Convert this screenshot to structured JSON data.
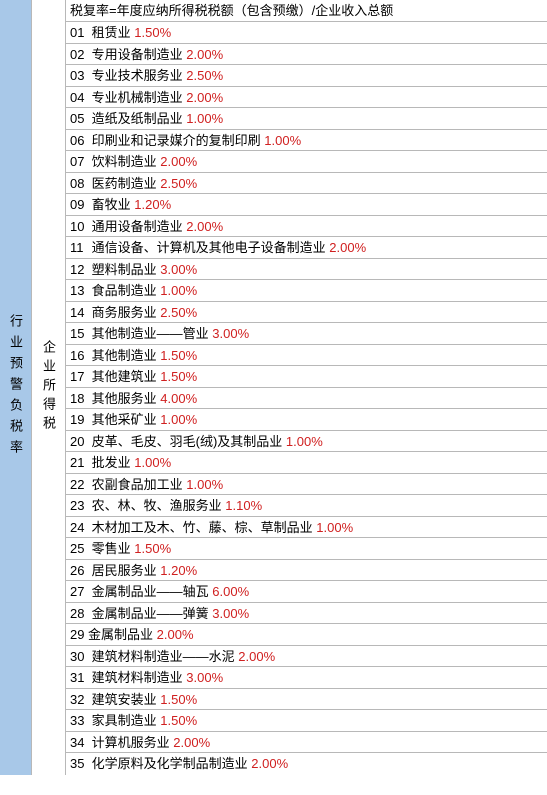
{
  "leftLabel": "行业预警负税率",
  "midLabel": "企业所得税",
  "headerFormula": "税复率=年度应纳所得税税额（包含预缴）/企业收入总额",
  "percentColor": "#d02020",
  "labelColor": "#000000",
  "leftBgColor": "#a8c8e8",
  "borderColor": "#b8b8b8",
  "rows": [
    {
      "num": "01",
      "label": "租赁业",
      "percent": "1.50%"
    },
    {
      "num": "02",
      "label": "专用设备制造业",
      "percent": "2.00%"
    },
    {
      "num": "03",
      "label": "专业技术服务业",
      "percent": "2.50%"
    },
    {
      "num": "04",
      "label": "专业机械制造业",
      "percent": "2.00%"
    },
    {
      "num": "05",
      "label": "造纸及纸制品业",
      "percent": "1.00%"
    },
    {
      "num": "06",
      "label": "印刷业和记录媒介的复制印刷",
      "percent": "1.00%"
    },
    {
      "num": "07",
      "label": "饮料制造业",
      "percent": "2.00%"
    },
    {
      "num": "08",
      "label": "医药制造业",
      "percent": "2.50%"
    },
    {
      "num": "09",
      "label": "畜牧业",
      "percent": "1.20%"
    },
    {
      "num": "10",
      "label": "通用设备制造业",
      "percent": "2.00%"
    },
    {
      "num": "11",
      "label": "通信设备、计算机及其他电子设备制造业",
      "percent": "2.00%"
    },
    {
      "num": "12",
      "label": "塑料制品业",
      "percent": "3.00%"
    },
    {
      "num": "13",
      "label": "食品制造业",
      "percent": "1.00%"
    },
    {
      "num": "14",
      "label": "商务服务业",
      "percent": "2.50%"
    },
    {
      "num": "15",
      "label": "其他制造业——管业",
      "percent": "3.00%"
    },
    {
      "num": "16",
      "label": "其他制造业",
      "percent": "1.50%"
    },
    {
      "num": "17",
      "label": "其他建筑业",
      "percent": "1.50%"
    },
    {
      "num": "18",
      "label": "其他服务业",
      "percent": "4.00%"
    },
    {
      "num": "19",
      "label": "其他采矿业",
      "percent": "1.00%"
    },
    {
      "num": "20",
      "label": "皮革、毛皮、羽毛(绒)及其制品业",
      "percent": "1.00%"
    },
    {
      "num": "21",
      "label": "批发业",
      "percent": "1.00%"
    },
    {
      "num": "22",
      "label": "农副食品加工业",
      "percent": "1.00%"
    },
    {
      "num": "23",
      "label": "农、林、牧、渔服务业",
      "percent": "1.10%"
    },
    {
      "num": "24",
      "label": "木材加工及木、竹、藤、棕、草制品业",
      "percent": "1.00%"
    },
    {
      "num": "25",
      "label": "零售业",
      "percent": "1.50%"
    },
    {
      "num": "26",
      "label": "居民服务业",
      "percent": "1.20%"
    },
    {
      "num": "27",
      "label": "金属制品业——轴瓦",
      "percent": "6.00%"
    },
    {
      "num": "28",
      "label": "金属制品业——弹簧",
      "percent": "3.00%"
    },
    {
      "num": "29",
      "label": "金属制品业",
      "percent": "2.00%",
      "nospace": true
    },
    {
      "num": "30",
      "label": "建筑材料制造业——水泥",
      "percent": "2.00%"
    },
    {
      "num": "31",
      "label": "建筑材料制造业",
      "percent": "3.00%"
    },
    {
      "num": "32",
      "label": "建筑安装业",
      "percent": "1.50%"
    },
    {
      "num": "33",
      "label": "家具制造业",
      "percent": "1.50%"
    },
    {
      "num": "34",
      "label": "计算机服务业",
      "percent": "2.00%"
    },
    {
      "num": "35",
      "label": "化学原料及化学制品制造业",
      "percent": "2.00%"
    }
  ]
}
